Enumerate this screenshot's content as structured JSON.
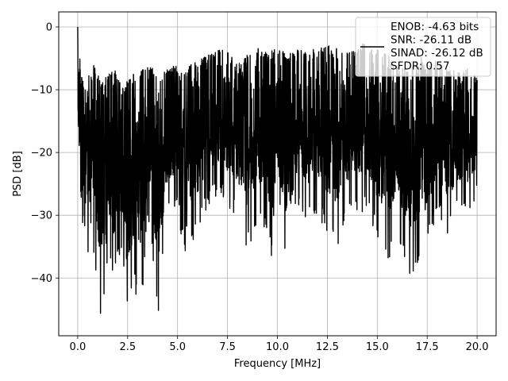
{
  "chart_data": {
    "type": "line",
    "title": "",
    "xlabel": "Frequency [MHz]",
    "ylabel": "PSD [dB]",
    "xlim": [
      -0.95,
      20.95
    ],
    "ylim": [
      -49.2,
      2.4
    ],
    "x_ticks": [
      0.0,
      2.5,
      5.0,
      7.5,
      10.0,
      12.5,
      15.0,
      17.5,
      20.0
    ],
    "x_tick_labels": [
      "0.0",
      "2.5",
      "5.0",
      "7.5",
      "10.0",
      "12.5",
      "15.0",
      "17.5",
      "20.0"
    ],
    "y_ticks": [
      0,
      -10,
      -20,
      -30,
      -40
    ],
    "y_tick_labels": [
      "0",
      "−10",
      "−20",
      "−30",
      "−40"
    ],
    "grid": true,
    "legend_position": "top-right",
    "legend_entries": [
      "ENOB: -4.63 bits\nSNR: -26.11 dB\nSINAD: -26.12 dB\nSFDR: 0.57"
    ],
    "series": [
      {
        "color": "#000000",
        "description": "dense noisy PSD trace, 0 to 20 MHz",
        "x": [
          0.0,
          0.02,
          0.05,
          0.1,
          0.18,
          0.3,
          0.35,
          0.45,
          0.5,
          0.7,
          0.8,
          1.1,
          1.3,
          1.4,
          1.8,
          2.2,
          2.45,
          2.8,
          3.2,
          3.5,
          4.05,
          4.5,
          5.0,
          5.45,
          5.8,
          6.5,
          7.0,
          7.5,
          8.0,
          8.5,
          9.0,
          9.5,
          9.8,
          10.0,
          10.5,
          11.0,
          11.5,
          11.85,
          12.3,
          12.5,
          13.0,
          13.3,
          13.8,
          14.3,
          14.6,
          15.3,
          15.8,
          16.2,
          16.8,
          17.2,
          17.5,
          18.0,
          18.5,
          19.0,
          19.5,
          20.0
        ],
        "y_max": [
          0.0,
          -3.5,
          -6,
          -4,
          -7,
          -8,
          -7.5,
          -8,
          -6.5,
          -8,
          -5,
          -8.2,
          -8.5,
          -8,
          -6.3,
          -9,
          -8.6,
          -7.4,
          -7,
          -5.8,
          -7.5,
          -6.5,
          -6,
          -6.4,
          -5.8,
          -4.3,
          -3.5,
          -3.2,
          -6,
          -4.3,
          -3,
          -4,
          -3.5,
          -3.5,
          -4,
          -3,
          -4,
          -3.5,
          -3,
          -3,
          -3,
          -3.7,
          -3.5,
          -2.6,
          -3.2,
          -3.5,
          -5,
          -6.5,
          -6,
          -4.5,
          -6.3,
          -5,
          -6.3,
          -7,
          -6.5,
          -8
        ],
        "y_min": [
          -16,
          -20,
          -22,
          -27,
          -36,
          -29,
          -40,
          -26,
          -37,
          -32,
          -36,
          -47,
          -44,
          -37,
          -41,
          -36,
          -47,
          -42,
          -44,
          -31,
          -46,
          -30,
          -29,
          -39.5,
          -34,
          -29,
          -27,
          -29,
          -30,
          -36,
          -31,
          -34,
          -39,
          -28,
          -39,
          -29,
          -31,
          -31,
          -32,
          -34,
          -35.5,
          -32,
          -29,
          -30,
          -30,
          -37,
          -37,
          -35,
          -41,
          -36,
          -36,
          -29,
          -34,
          -30,
          -31,
          -28
        ]
      }
    ]
  }
}
